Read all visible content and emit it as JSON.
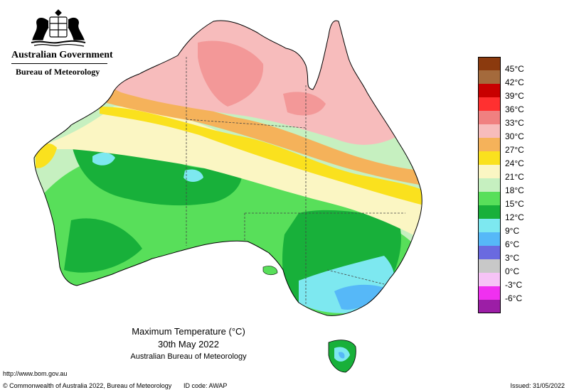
{
  "header": {
    "government": "Australian Government",
    "bureau": "Bureau of Meteorology"
  },
  "legend": {
    "items": [
      {
        "label": "45°C",
        "color": "#8b3a0e"
      },
      {
        "label": "42°C",
        "color": "#a46a3c"
      },
      {
        "label": "39°C",
        "color": "#c80000"
      },
      {
        "label": "36°C",
        "color": "#ff3030"
      },
      {
        "label": "33°C",
        "color": "#f08080"
      },
      {
        "label": "30°C",
        "color": "#f7bcbc"
      },
      {
        "label": "27°C",
        "color": "#f5b25a"
      },
      {
        "label": "24°C",
        "color": "#fae11e"
      },
      {
        "label": "21°C",
        "color": "#fbf6c3"
      },
      {
        "label": "18°C",
        "color": "#c6f0c0"
      },
      {
        "label": "15°C",
        "color": "#58df5a"
      },
      {
        "label": "12°C",
        "color": "#18b03a"
      },
      {
        "label": "9°C",
        "color": "#7de8f0"
      },
      {
        "label": "6°C",
        "color": "#56b8f8"
      },
      {
        "label": "3°C",
        "color": "#6a6ae0"
      },
      {
        "label": "0°C",
        "color": "#c8c8c8"
      },
      {
        "label": "-3°C",
        "color": "#f6c3f6"
      },
      {
        "label": "-6°C",
        "color": "#f030f0"
      },
      {
        "label": "",
        "color": "#9c1ea6"
      }
    ]
  },
  "caption": {
    "title": "Maximum Temperature (°C)",
    "date": "30th May 2022",
    "source": "Australian Bureau of Meteorology"
  },
  "footer": {
    "url": "http://www.bom.gov.au",
    "copyright": "© Commonwealth of Australia 2022, Bureau of Meteorology",
    "id_code": "ID code: AWAP",
    "issued": "Issued: 31/05/2022"
  }
}
